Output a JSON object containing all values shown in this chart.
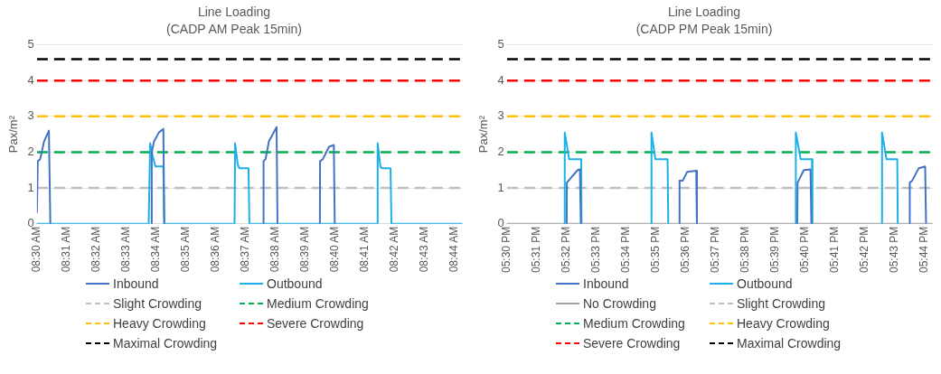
{
  "chart_data": [
    {
      "type": "line",
      "title": "Line Loading",
      "subtitle": "(CADP AM Peak 15min)",
      "ylabel": "Pax/m²",
      "xlim": [
        8.5,
        8.7378
      ],
      "ylim": [
        0,
        5
      ],
      "yticks": [
        0,
        1,
        2,
        3,
        4,
        5
      ],
      "grid": "y",
      "legend": "bottom",
      "xticks": [
        {
          "value": 8.5,
          "label": "08:30 AM"
        },
        {
          "value": 8.5167,
          "label": "08:31 AM"
        },
        {
          "value": 8.5333,
          "label": "08:32 AM"
        },
        {
          "value": 8.55,
          "label": "08:33 AM"
        },
        {
          "value": 8.5667,
          "label": "08:34 AM"
        },
        {
          "value": 8.5833,
          "label": "08:35 AM"
        },
        {
          "value": 8.6,
          "label": "08:36 AM"
        },
        {
          "value": 8.6167,
          "label": "08:37 AM"
        },
        {
          "value": 8.6333,
          "label": "08:38 AM"
        },
        {
          "value": 8.65,
          "label": "08:39 AM"
        },
        {
          "value": 8.6667,
          "label": "08:40 AM"
        },
        {
          "value": 8.6833,
          "label": "08:41 AM"
        },
        {
          "value": 8.7,
          "label": "08:42 AM"
        },
        {
          "value": 8.7167,
          "label": "08:43 AM"
        },
        {
          "value": 8.7333,
          "label": "08:44 AM"
        }
      ],
      "series": [
        {
          "name": "Inbound",
          "color": "#4472c4",
          "line_style": "solid",
          "x": [
            8.5,
            8.5005,
            8.5018,
            8.504,
            8.5067,
            8.5075,
            8.52,
            8.5638,
            8.5642,
            8.5655,
            8.5682,
            8.5707,
            8.5712,
            8.6,
            8.6265,
            8.6267,
            8.6278,
            8.6297,
            8.634,
            8.6345,
            8.65,
            8.6582,
            8.6583,
            8.6598,
            8.6633,
            8.666,
            8.6665
          ],
          "values": [
            0.3,
            1.75,
            1.8,
            2.3,
            2.6,
            0,
            null,
            0,
            2.0,
            2.3,
            2.55,
            2.65,
            0,
            null,
            0,
            1.75,
            1.8,
            2.3,
            2.7,
            0,
            null,
            0,
            1.75,
            1.8,
            2.15,
            2.2,
            0
          ]
        },
        {
          "name": "Outbound",
          "color": "#1cb0ea",
          "line_style": "solid",
          "x": [
            8.5,
            8.5625,
            8.5633,
            8.5647,
            8.5663,
            8.5707,
            8.5712,
            8.6105,
            8.6108,
            8.6123,
            8.6132,
            8.6183,
            8.6188,
            8.6902,
            8.6905,
            8.692,
            8.6928,
            8.6977,
            8.6982,
            8.7378
          ],
          "values": [
            0,
            0,
            2.25,
            1.9,
            1.6,
            1.6,
            0,
            0,
            2.25,
            1.65,
            1.55,
            1.55,
            0,
            0,
            2.25,
            1.6,
            1.55,
            1.55,
            0,
            0
          ]
        },
        {
          "name": "Slight Crowding",
          "color": "#bfbfbf",
          "line_style": "dashed",
          "x": [
            8.5,
            8.7378
          ],
          "values": [
            1,
            1
          ]
        },
        {
          "name": "Medium Crowding",
          "color": "#00b050",
          "line_style": "dashed",
          "x": [
            8.5,
            8.7378
          ],
          "values": [
            2,
            2
          ]
        },
        {
          "name": "Heavy Crowding",
          "color": "#ffc000",
          "line_style": "dashed",
          "x": [
            8.5,
            8.7378
          ],
          "values": [
            3,
            3
          ]
        },
        {
          "name": "Severe Crowding",
          "color": "#ff0000",
          "line_style": "dashed",
          "x": [
            8.5,
            8.7378
          ],
          "values": [
            4,
            4
          ]
        },
        {
          "name": "Maximal Crowding",
          "color": "#000000",
          "line_style": "dashed",
          "x": [
            8.5,
            8.7378
          ],
          "values": [
            4.6,
            4.6
          ]
        }
      ]
    },
    {
      "type": "line",
      "title": "Line Loading",
      "subtitle": "(CADP PM Peak 15min)",
      "ylabel": "Pax/m²",
      "xlim": [
        17.5,
        17.738
      ],
      "ylim": [
        0,
        5
      ],
      "yticks": [
        0,
        1,
        2,
        3,
        4,
        5
      ],
      "grid": "y",
      "legend": "bottom",
      "xticks": [
        {
          "value": 17.5,
          "label": "05:30 PM"
        },
        {
          "value": 17.5167,
          "label": "05:31 PM"
        },
        {
          "value": 17.5333,
          "label": "05:32 PM"
        },
        {
          "value": 17.55,
          "label": "05:33 PM"
        },
        {
          "value": 17.5667,
          "label": "05:34 PM"
        },
        {
          "value": 17.5833,
          "label": "05:35 PM"
        },
        {
          "value": 17.6,
          "label": "05:36 PM"
        },
        {
          "value": 17.6167,
          "label": "05:37 PM"
        },
        {
          "value": 17.6333,
          "label": "05:38 PM"
        },
        {
          "value": 17.65,
          "label": "05:39 PM"
        },
        {
          "value": 17.6667,
          "label": "05:40 PM"
        },
        {
          "value": 17.6833,
          "label": "05:41 PM"
        },
        {
          "value": 17.7,
          "label": "05:42 PM"
        },
        {
          "value": 17.7167,
          "label": "05:43 PM"
        },
        {
          "value": 17.7333,
          "label": "05:44 PM"
        }
      ],
      "series": [
        {
          "name": "Inbound",
          "color": "#4472c4",
          "line_style": "solid",
          "x": [
            17.5334,
            17.5335,
            17.5395,
            17.5408,
            17.5413,
            17.56,
            17.5963,
            17.5965,
            17.5982,
            17.6008,
            17.6058,
            17.6062,
            17.63,
            17.6623,
            17.6625,
            17.666,
            17.6697,
            17.6702,
            17.7,
            17.725,
            17.7252,
            17.7265,
            17.7302,
            17.7338,
            17.7343
          ],
          "values": [
            0,
            1.15,
            1.5,
            1.52,
            0,
            null,
            0,
            1.2,
            1.2,
            1.45,
            1.48,
            0,
            null,
            0,
            1.15,
            1.5,
            1.52,
            0,
            null,
            0,
            1.15,
            1.2,
            1.55,
            1.6,
            0
          ]
        },
        {
          "name": "Outbound",
          "color": "#1cb0ea",
          "line_style": "solid",
          "x": [
            17.5322,
            17.5323,
            17.5348,
            17.5415,
            17.5417,
            17.56,
            17.5807,
            17.5808,
            17.583,
            17.5898,
            17.5902,
            17.63,
            17.6613,
            17.6615,
            17.6642,
            17.6705,
            17.6708,
            17.69,
            17.7095,
            17.7097,
            17.7122,
            17.7182,
            17.7185
          ],
          "values": [
            0,
            2.55,
            1.8,
            1.8,
            0,
            null,
            0,
            2.55,
            1.8,
            1.8,
            0,
            null,
            0,
            2.55,
            1.8,
            1.8,
            0,
            null,
            0,
            2.55,
            1.8,
            1.8,
            0
          ]
        },
        {
          "name": "No Crowding",
          "color": "#a5a5a5",
          "line_style": "solid",
          "x": [
            17.5,
            17.738
          ],
          "values": [
            0,
            0
          ]
        },
        {
          "name": "Slight Crowding",
          "color": "#bfbfbf",
          "line_style": "dashed",
          "x": [
            17.5,
            17.738
          ],
          "values": [
            1,
            1
          ]
        },
        {
          "name": "Medium Crowding",
          "color": "#00b050",
          "line_style": "dashed",
          "x": [
            17.5,
            17.738
          ],
          "values": [
            2,
            2
          ]
        },
        {
          "name": "Heavy Crowding",
          "color": "#ffc000",
          "line_style": "dashed",
          "x": [
            17.5,
            17.738
          ],
          "values": [
            3,
            3
          ]
        },
        {
          "name": "Severe Crowding",
          "color": "#ff0000",
          "line_style": "dashed",
          "x": [
            17.5,
            17.738
          ],
          "values": [
            4,
            4
          ]
        },
        {
          "name": "Maximal Crowding",
          "color": "#000000",
          "line_style": "dashed",
          "x": [
            17.5,
            17.738
          ],
          "values": [
            4.6,
            4.6
          ]
        }
      ]
    }
  ]
}
